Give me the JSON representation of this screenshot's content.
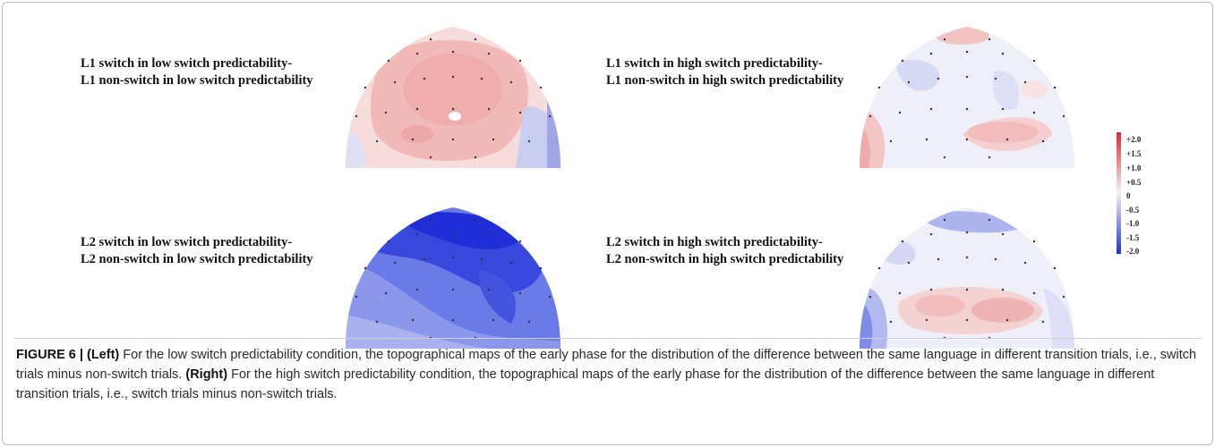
{
  "panels": [
    {
      "line1": "L1 switch in low switch predictability-",
      "line2": "L1 non-switch in low switch predictability",
      "map": "topomap-l1-low"
    },
    {
      "line1": "L1 switch in high switch predictability-",
      "line2": "L1 non-switch in high switch predictability",
      "map": "topomap-l1-high"
    },
    {
      "line1": "L2 switch in low switch predictability-",
      "line2": "L2 non-switch in low switch predictability",
      "map": "topomap-l2-low"
    },
    {
      "line1": "L2 switch in high switch predictability-",
      "line2": "L2 non-switch in high switch predictability",
      "map": "topomap-l2-high"
    }
  ],
  "colorscale": {
    "ticks": [
      "+2.0",
      "+1.5",
      "+1.0",
      "+0.5",
      "0",
      "-0.5",
      "-1.0",
      "-1.5",
      "-2.0"
    ],
    "positive_color": "#e8262a",
    "negative_color": "#1f2fe0",
    "zero_color": "#f2f2f6"
  },
  "caption": {
    "figure": "FIGURE 6 |",
    "left_tag": "(Left)",
    "left_text": "For the low switch predictability condition, the topographical maps of the early phase for the distribution of the difference between the same language in different transition trials, i.e., switch trials minus non-switch trials.",
    "right_tag": "(Right)",
    "right_text": "For the high switch predictability condition, the topographical maps of the early phase for the distribution of the difference between the same language in different transition trials, i.e., switch trials minus non-switch trials."
  }
}
